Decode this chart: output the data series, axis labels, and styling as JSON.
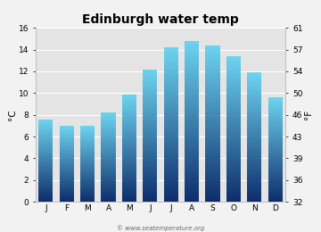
{
  "title": "Edinburgh water temp",
  "months": [
    "J",
    "F",
    "M",
    "A",
    "M",
    "J",
    "J",
    "A",
    "S",
    "O",
    "N",
    "D"
  ],
  "values_c": [
    7.6,
    7.0,
    7.0,
    8.2,
    9.9,
    12.2,
    14.2,
    14.8,
    14.4,
    13.4,
    11.9,
    9.6
  ],
  "ylim_c": [
    0,
    16
  ],
  "yticks_c": [
    0,
    2,
    4,
    6,
    8,
    10,
    12,
    14,
    16
  ],
  "yticks_f": [
    32,
    36,
    39,
    43,
    46,
    50,
    54,
    57,
    61
  ],
  "ylabel_left": "°C",
  "ylabel_right": "°F",
  "bar_color_top": "#6dd4f0",
  "bar_color_bottom": "#0d2d6b",
  "bg_color": "#f2f2f2",
  "plot_bg_color": "#e4e4e4",
  "title_fontsize": 10,
  "axis_fontsize": 6.5,
  "label_fontsize": 7.5,
  "watermark": "© www.seatemperature.org",
  "bar_width": 0.7
}
